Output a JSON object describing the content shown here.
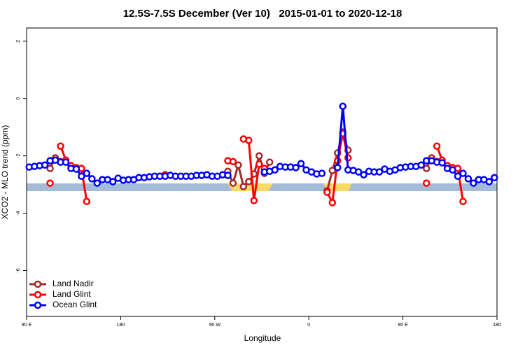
{
  "chart_data": {
    "type": "line",
    "title": "12.5S-7.5S December (Ver 10)   2015-01-01 to 2020-12-18",
    "xlabel": "Longitude",
    "ylabel": "XCO2 - MLO trend (ppm)",
    "x": [
      92.5,
      97.5,
      102.5,
      107.5,
      112.5,
      117.5,
      122.5,
      127.5,
      132.5,
      137.5,
      142.5,
      147.5,
      152.5,
      157.5,
      162.5,
      167.5,
      172.5,
      177.5,
      182.5,
      187.5,
      192.5,
      197.5,
      202.5,
      207.5,
      212.5,
      217.5,
      222.5,
      227.5,
      232.5,
      237.5,
      242.5,
      247.5,
      252.5,
      257.5,
      262.5,
      267.5,
      272.5,
      277.5,
      282.5,
      287.5,
      292.5,
      297.5,
      302.5,
      307.5,
      312.5,
      317.5,
      322.5,
      327.5,
      332.5,
      337.5,
      342.5,
      347.5,
      352.5,
      357.5,
      362.5,
      367.5,
      372.5,
      377.5,
      382.5,
      387.5,
      392.5,
      397.5,
      402.5,
      407.5,
      412.5,
      417.5,
      422.5,
      427.5,
      432.5,
      437.5,
      442.5,
      447.5,
      452.5,
      457.5,
      462.5,
      467.5,
      472.5,
      477.5,
      482.5,
      487.5,
      492.5,
      497.5,
      502.5,
      507.5,
      512.5,
      517.5,
      522.5,
      527.5,
      532.5,
      537.5
    ],
    "series": [
      {
        "name": "Land Nadir",
        "color": "#a52a2a",
        "values": [
          null,
          null,
          null,
          null,
          -2.44,
          -2.07,
          -2.2,
          null,
          null,
          null,
          null,
          null,
          null,
          null,
          null,
          null,
          null,
          null,
          null,
          null,
          null,
          null,
          null,
          null,
          null,
          null,
          null,
          null,
          null,
          null,
          null,
          null,
          null,
          null,
          null,
          null,
          null,
          null,
          -2.54,
          -2.95,
          -2.32,
          -3.07,
          -2.9,
          -2.63,
          -2.0,
          -2.61,
          -2.22,
          null,
          null,
          null,
          null,
          null,
          null,
          null,
          null,
          null,
          null,
          -3.22,
          -2.51,
          -1.9,
          -1.17,
          -1.8,
          null,
          null,
          null,
          null,
          null,
          null,
          null,
          null,
          null,
          null,
          null,
          null,
          null,
          null,
          -2.44,
          -2.07,
          -2.2,
          null,
          null,
          null,
          null,
          null,
          null,
          null,
          null,
          null,
          null,
          null
        ]
      },
      {
        "name": "Land Glint",
        "color": "#ff0000",
        "values": [
          null,
          null,
          null,
          null,
          -2.95,
          null,
          -1.66,
          -2.15,
          -2.34,
          -2.41,
          -2.44,
          -3.59,
          null,
          null,
          null,
          null,
          null,
          null,
          null,
          null,
          null,
          null,
          null,
          null,
          null,
          null,
          -2.66,
          null,
          null,
          null,
          null,
          null,
          null,
          null,
          null,
          null,
          null,
          null,
          -2.17,
          -2.2,
          null,
          -1.41,
          -1.46,
          -3.56,
          -2.29,
          -2.44,
          null,
          null,
          null,
          null,
          null,
          null,
          null,
          null,
          null,
          null,
          null,
          -3.27,
          -3.63,
          -2.17,
          -1.22,
          -2.07,
          null,
          null,
          null,
          null,
          null,
          null,
          null,
          null,
          null,
          null,
          null,
          null,
          null,
          null,
          -2.95,
          null,
          -1.66,
          -2.15,
          -2.34,
          -2.41,
          -2.44,
          -3.59,
          null,
          null,
          null,
          null,
          null,
          null
        ]
      },
      {
        "name": "Ocean Glint",
        "color": "#0000ff",
        "values": [
          -2.39,
          -2.37,
          -2.34,
          -2.32,
          -2.17,
          -2.15,
          -2.22,
          -2.22,
          -2.44,
          -2.46,
          -2.71,
          -2.61,
          -2.8,
          -2.95,
          -2.83,
          -2.83,
          -2.9,
          -2.78,
          -2.85,
          -2.83,
          -2.83,
          -2.76,
          -2.76,
          -2.73,
          -2.71,
          -2.71,
          -2.71,
          -2.68,
          -2.71,
          -2.71,
          -2.71,
          -2.71,
          -2.68,
          -2.68,
          -2.66,
          -2.71,
          -2.71,
          -2.66,
          -2.68,
          null,
          null,
          null,
          null,
          null,
          null,
          -2.56,
          -2.54,
          -2.49,
          -2.37,
          -2.39,
          -2.39,
          -2.41,
          -2.27,
          -2.49,
          -2.56,
          -2.63,
          -2.61,
          null,
          null,
          -2.41,
          -0.27,
          -2.49,
          -2.51,
          -2.56,
          -2.66,
          -2.54,
          -2.56,
          -2.56,
          -2.46,
          -2.54,
          -2.49,
          -2.41,
          -2.39,
          -2.37,
          -2.37,
          -2.32,
          -2.17,
          -2.17,
          -2.22,
          -2.24,
          -2.44,
          -2.49,
          -2.71,
          -2.61,
          -2.8,
          -2.95,
          -2.83,
          -2.83,
          -2.9,
          -2.76
        ]
      }
    ],
    "xlim": [
      90,
      540
    ],
    "xticks": [
      {
        "value": 90,
        "label": "90 E"
      },
      180,
      {
        "value": 270,
        "label": "90 W"
      },
      {
        "value": 360,
        "label": "0"
      },
      {
        "value": 450,
        "label": "90 E"
      },
      {
        "value": 540,
        "label": "180"
      }
    ],
    "ylim": [
      -7.6,
      2.46
    ],
    "yticks": [
      2,
      0,
      -2,
      -4,
      -6
    ],
    "legend": "lower left"
  }
}
